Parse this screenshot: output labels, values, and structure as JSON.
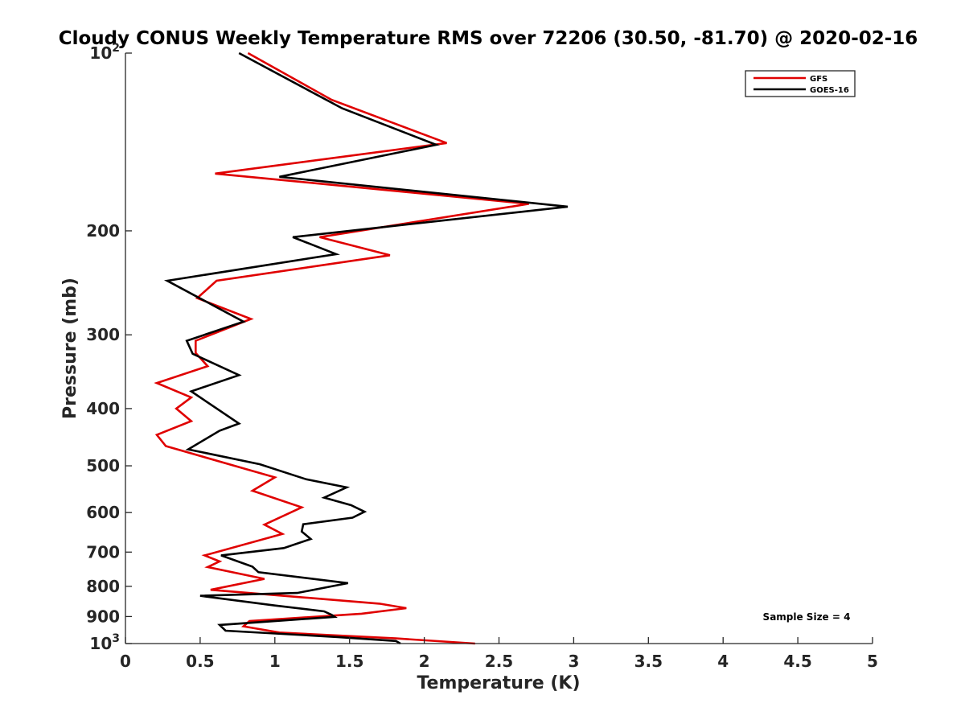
{
  "chart_data": {
    "type": "line",
    "title": "Cloudy CONUS Weekly Temperature RMS over 72206 (30.50, -81.70) @ 2020-02-16",
    "xlabel": "Temperature (K)",
    "ylabel": "Pressure (mb)",
    "xlim": [
      0,
      5
    ],
    "ylim": [
      100,
      1000
    ],
    "y_scale": "log",
    "y_reversed": true,
    "x_ticks": [
      0,
      0.5,
      1,
      1.5,
      2,
      2.5,
      3,
      3.5,
      4,
      4.5,
      5
    ],
    "x_tick_labels": [
      "0",
      "0.5",
      "1",
      "1.5",
      "2",
      "2.5",
      "3",
      "3.5",
      "4",
      "4.5",
      "5"
    ],
    "y_ticks": [
      100,
      200,
      300,
      400,
      500,
      600,
      700,
      800,
      900,
      1000
    ],
    "y_tick_labels": [
      {
        "base": "10",
        "exp": "2"
      },
      {
        "base": "200",
        "exp": ""
      },
      {
        "base": "300",
        "exp": ""
      },
      {
        "base": "400",
        "exp": ""
      },
      {
        "base": "500",
        "exp": ""
      },
      {
        "base": "600",
        "exp": ""
      },
      {
        "base": "700",
        "exp": ""
      },
      {
        "base": "800",
        "exp": ""
      },
      {
        "base": "900",
        "exp": ""
      },
      {
        "base": "10",
        "exp": "3"
      }
    ],
    "grid": false,
    "legend": "top-right",
    "annotation": "Sample Size = 4",
    "series": [
      {
        "name": "GFS",
        "color": "#e00000",
        "points": [
          [
            0.82,
            100
          ],
          [
            1.38,
            120
          ],
          [
            2.15,
            142
          ],
          [
            0.6,
            160
          ],
          [
            2.7,
            180
          ],
          [
            1.3,
            205
          ],
          [
            1.77,
            220
          ],
          [
            0.61,
            243
          ],
          [
            0.48,
            260
          ],
          [
            0.84,
            282
          ],
          [
            0.47,
            307
          ],
          [
            0.47,
            322
          ],
          [
            0.55,
            339
          ],
          [
            0.21,
            362
          ],
          [
            0.44,
            383
          ],
          [
            0.34,
            400
          ],
          [
            0.44,
            420
          ],
          [
            0.21,
            443
          ],
          [
            0.27,
            463
          ],
          [
            1.0,
            523
          ],
          [
            0.85,
            551
          ],
          [
            1.18,
            588
          ],
          [
            0.93,
            629
          ],
          [
            1.05,
            652
          ],
          [
            0.53,
            709
          ],
          [
            0.63,
            726
          ],
          [
            0.55,
            742
          ],
          [
            0.93,
            777
          ],
          [
            0.57,
            811
          ],
          [
            1.7,
            856
          ],
          [
            1.88,
            871
          ],
          [
            1.58,
            890
          ],
          [
            0.83,
            916
          ],
          [
            0.79,
            935
          ],
          [
            1.03,
            958
          ],
          [
            1.81,
            980
          ],
          [
            2.34,
            1000
          ]
        ]
      },
      {
        "name": "GOES-16",
        "color": "#000000",
        "points": [
          [
            0.76,
            100
          ],
          [
            1.45,
            124
          ],
          [
            2.08,
            143
          ],
          [
            1.03,
            162
          ],
          [
            2.96,
            182
          ],
          [
            1.12,
            205
          ],
          [
            1.41,
            219
          ],
          [
            0.28,
            243
          ],
          [
            0.79,
            285
          ],
          [
            0.41,
            307
          ],
          [
            0.45,
            323
          ],
          [
            0.76,
            351
          ],
          [
            0.44,
            374
          ],
          [
            0.76,
            424
          ],
          [
            0.63,
            436
          ],
          [
            0.42,
            469
          ],
          [
            0.9,
            497
          ],
          [
            1.21,
            527
          ],
          [
            1.48,
            544
          ],
          [
            1.33,
            566
          ],
          [
            1.51,
            583
          ],
          [
            1.6,
            598
          ],
          [
            1.52,
            612
          ],
          [
            1.19,
            628
          ],
          [
            1.18,
            646
          ],
          [
            1.24,
            665
          ],
          [
            1.06,
            689
          ],
          [
            0.64,
            709
          ],
          [
            0.85,
            741
          ],
          [
            0.89,
            757
          ],
          [
            1.49,
            790
          ],
          [
            1.15,
            821
          ],
          [
            0.5,
            830
          ],
          [
            1.0,
            862
          ],
          [
            1.33,
            882
          ],
          [
            1.38,
            894
          ],
          [
            1.4,
            901
          ],
          [
            0.63,
            930
          ],
          [
            0.67,
            951
          ],
          [
            1.42,
            975
          ],
          [
            1.81,
            990
          ],
          [
            1.84,
            1000
          ]
        ]
      }
    ]
  }
}
